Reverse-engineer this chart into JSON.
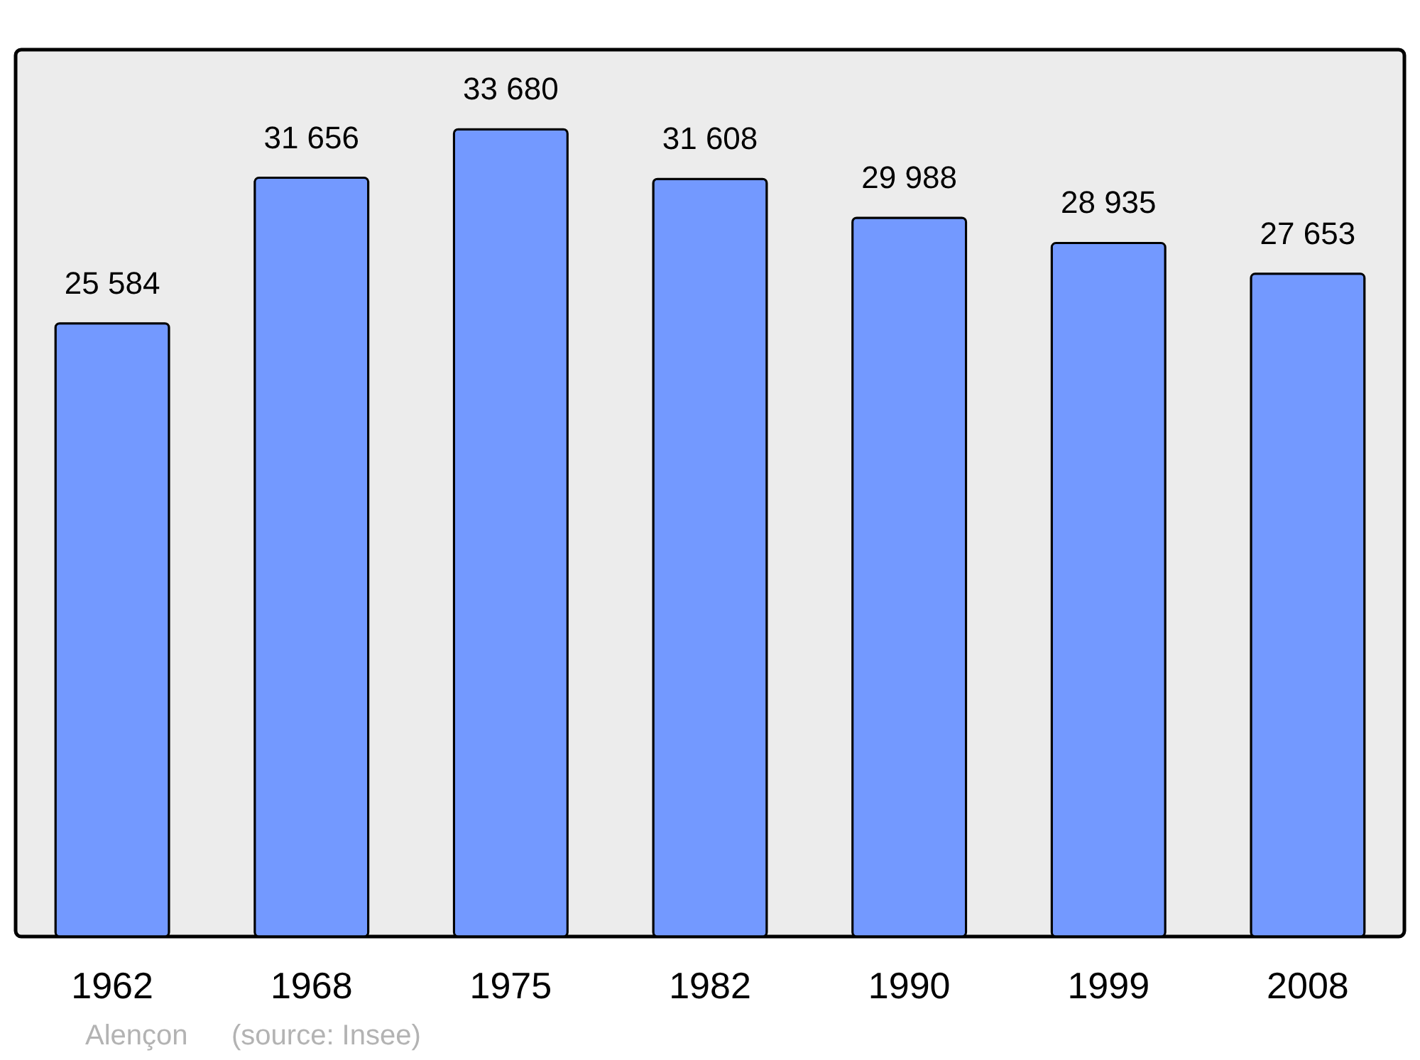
{
  "chart_data": {
    "type": "bar",
    "categories": [
      "1962",
      "1968",
      "1975",
      "1982",
      "1990",
      "1999",
      "2008"
    ],
    "values": [
      25584,
      31656,
      33680,
      31608,
      29988,
      28935,
      27653
    ],
    "value_labels": [
      "25 584",
      "31 656",
      "33 680",
      "31 608",
      "29 988",
      "28 935",
      "27 653"
    ],
    "color": "#7399ff",
    "ylim": [
      0,
      37000
    ],
    "grid": false,
    "tick_labels": "x",
    "annotations": [
      "Alençon",
      "(source: Insee)"
    ]
  }
}
